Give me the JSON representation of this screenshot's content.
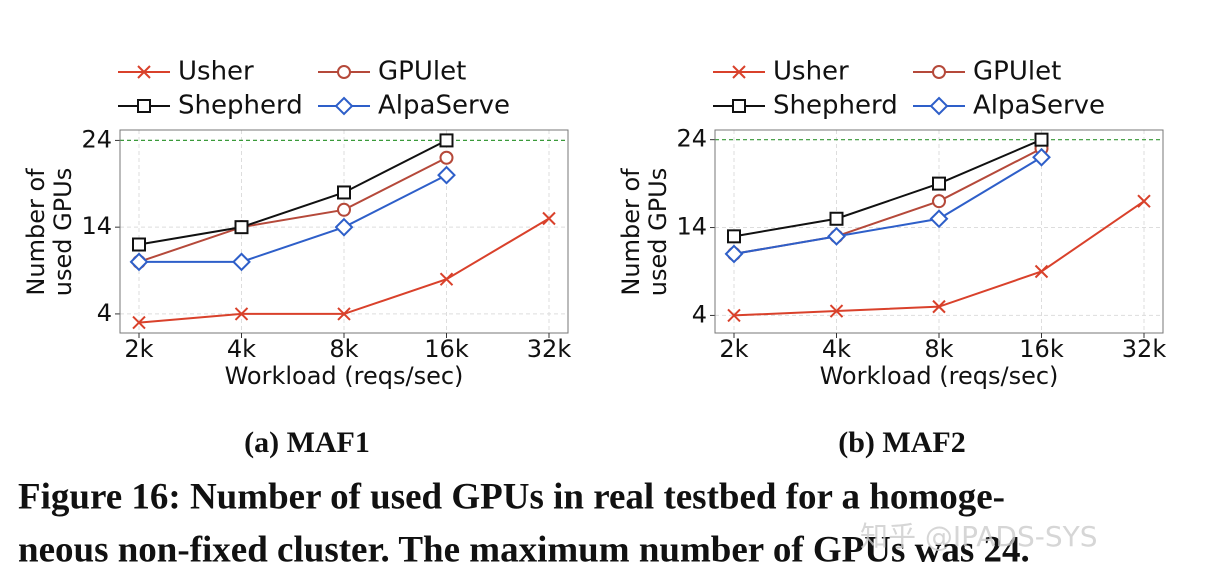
{
  "chart_data": [
    {
      "type": "line",
      "title": "(a) MAF1",
      "ylabel": [
        "Number of",
        "used GPUs"
      ],
      "xlabel": "Workload (reqs/sec)",
      "categories": [
        "2k",
        "4k",
        "8k",
        "16k",
        "32k"
      ],
      "ylim": [
        1.8,
        25.2
      ],
      "yticks": [
        4,
        14,
        24
      ],
      "grid": true,
      "reference_line": 24,
      "reference_color": "#3a9a3a",
      "series": [
        {
          "name": "Usher",
          "color": "#d9412b",
          "marker": "x",
          "values": [
            3,
            4,
            4,
            8,
            15
          ]
        },
        {
          "name": "GPUlet",
          "color": "#b5493a",
          "marker": "circle",
          "values": [
            10,
            14,
            16,
            22,
            null
          ]
        },
        {
          "name": "Shepherd",
          "color": "#111111",
          "marker": "square",
          "values": [
            12,
            14,
            18,
            24,
            null
          ]
        },
        {
          "name": "AlpaServe",
          "color": "#2e5fc9",
          "marker": "diamond",
          "values": [
            10,
            10,
            14,
            20,
            null
          ]
        }
      ]
    },
    {
      "type": "line",
      "title": "(b) MAF2",
      "ylabel": [
        "Number of",
        "used GPUs"
      ],
      "xlabel": "Workload (reqs/sec)",
      "categories": [
        "2k",
        "4k",
        "8k",
        "16k",
        "32k"
      ],
      "ylim": [
        2,
        25.1
      ],
      "yticks": [
        4,
        14,
        24
      ],
      "grid": true,
      "reference_line": 24,
      "reference_color": "#3a9a3a",
      "series": [
        {
          "name": "Usher",
          "color": "#d9412b",
          "marker": "x",
          "values": [
            4,
            4.5,
            5,
            9,
            17
          ]
        },
        {
          "name": "GPUlet",
          "color": "#b5493a",
          "marker": "circle",
          "values": [
            11,
            13,
            17,
            23,
            null
          ]
        },
        {
          "name": "Shepherd",
          "color": "#111111",
          "marker": "square",
          "values": [
            13,
            15,
            19,
            24,
            null
          ]
        },
        {
          "name": "AlpaServe",
          "color": "#2e5fc9",
          "marker": "diamond",
          "values": [
            11,
            13,
            15,
            22,
            null
          ]
        }
      ]
    }
  ],
  "caption": [
    "Figure 16: Number of used GPUs in real testbed for a homoge-",
    "neous non-fixed cluster. The maximum number of GPUs was 24."
  ],
  "watermark": "知乎 @IPADS-SYS"
}
